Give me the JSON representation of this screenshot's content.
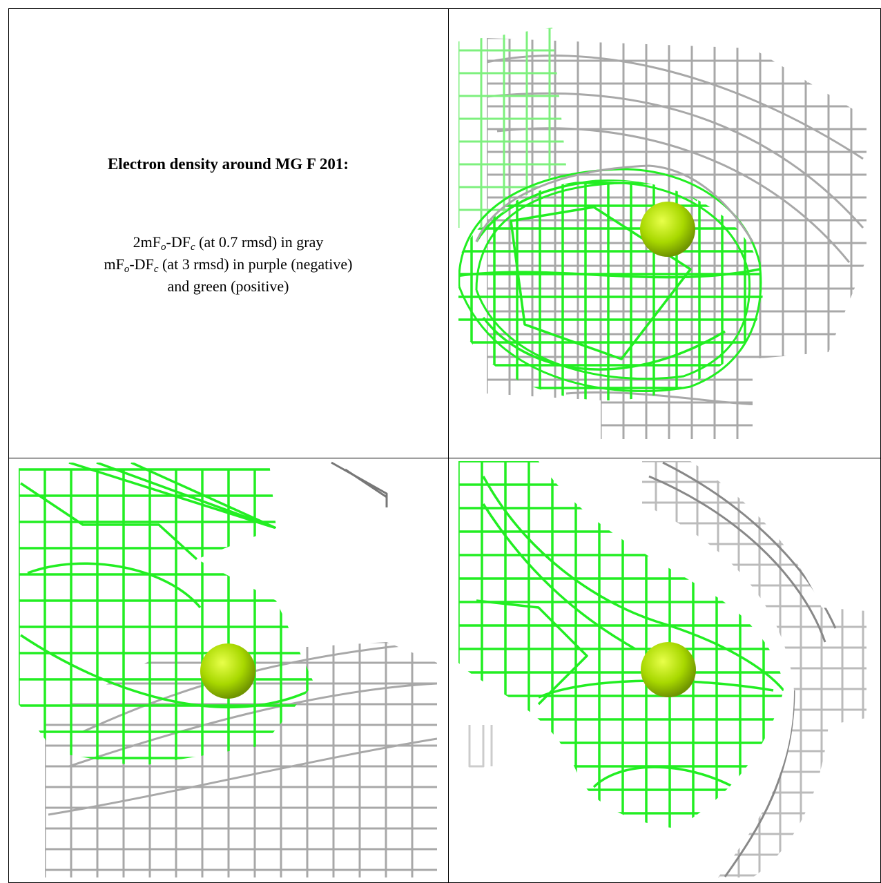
{
  "title": "Electron density around MG F 201:",
  "lines": [
    [
      "2mF",
      "o",
      "-DF",
      "c",
      " (at 0.7 rmsd) in gray"
    ],
    [
      "mF",
      "o",
      "-DF",
      "c",
      " (at 3 rmsd) in purple (negative)"
    ],
    [
      "and green (positive)"
    ]
  ]
}
